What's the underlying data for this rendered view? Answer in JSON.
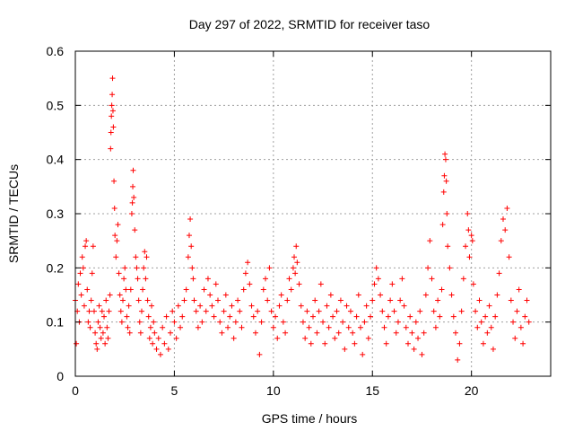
{
  "chart_data": {
    "type": "scatter",
    "title": "Day 297 of 2022, SRMTID for receiver taso",
    "xlabel": "GPS time / hours",
    "ylabel": "SRMTID / TECUs",
    "xlim": [
      0,
      24
    ],
    "ylim": [
      0,
      0.6
    ],
    "x_ticks": [
      0,
      5,
      10,
      15,
      20
    ],
    "x_tick_labels": [
      "0",
      "5",
      "10",
      "15",
      "20"
    ],
    "y_ticks": [
      0,
      0.1,
      0.2,
      0.3,
      0.4,
      0.5,
      0.6
    ],
    "y_tick_labels": [
      "0",
      "0.1",
      "0.2",
      "0.3",
      "0.4",
      "0.5",
      "0.6"
    ],
    "grid": true,
    "marker": "+",
    "color": "#ff0000",
    "series": [
      {
        "name": "SRMTID",
        "points": [
          [
            0.0,
            0.14
          ],
          [
            0.05,
            0.06
          ],
          [
            0.1,
            0.12
          ],
          [
            0.15,
            0.17
          ],
          [
            0.2,
            0.1
          ],
          [
            0.25,
            0.19
          ],
          [
            0.3,
            0.15
          ],
          [
            0.35,
            0.22
          ],
          [
            0.4,
            0.2
          ],
          [
            0.45,
            0.13
          ],
          [
            0.5,
            0.24
          ],
          [
            0.55,
            0.25
          ],
          [
            0.6,
            0.16
          ],
          [
            0.65,
            0.1
          ],
          [
            0.7,
            0.12
          ],
          [
            0.75,
            0.09
          ],
          [
            0.8,
            0.14
          ],
          [
            0.85,
            0.19
          ],
          [
            0.9,
            0.24
          ],
          [
            0.95,
            0.12
          ],
          [
            1.0,
            0.08
          ],
          [
            1.05,
            0.06
          ],
          [
            1.1,
            0.05
          ],
          [
            1.15,
            0.1
          ],
          [
            1.2,
            0.13
          ],
          [
            1.25,
            0.09
          ],
          [
            1.3,
            0.07
          ],
          [
            1.35,
            0.12
          ],
          [
            1.4,
            0.08
          ],
          [
            1.45,
            0.11
          ],
          [
            1.5,
            0.06
          ],
          [
            1.55,
            0.14
          ],
          [
            1.6,
            0.09
          ],
          [
            1.65,
            0.07
          ],
          [
            1.7,
            0.12
          ],
          [
            1.75,
            0.15
          ],
          [
            1.78,
            0.42
          ],
          [
            1.8,
            0.45
          ],
          [
            1.82,
            0.48
          ],
          [
            1.84,
            0.5
          ],
          [
            1.86,
            0.52
          ],
          [
            1.88,
            0.55
          ],
          [
            1.9,
            0.49
          ],
          [
            1.92,
            0.46
          ],
          [
            1.95,
            0.36
          ],
          [
            1.98,
            0.31
          ],
          [
            2.0,
            0.26
          ],
          [
            2.05,
            0.22
          ],
          [
            2.1,
            0.25
          ],
          [
            2.15,
            0.28
          ],
          [
            2.2,
            0.19
          ],
          [
            2.25,
            0.15
          ],
          [
            2.3,
            0.12
          ],
          [
            2.35,
            0.1
          ],
          [
            2.4,
            0.14
          ],
          [
            2.45,
            0.18
          ],
          [
            2.5,
            0.2
          ],
          [
            2.55,
            0.16
          ],
          [
            2.6,
            0.11
          ],
          [
            2.65,
            0.09
          ],
          [
            2.7,
            0.13
          ],
          [
            2.75,
            0.08
          ],
          [
            2.8,
            0.16
          ],
          [
            2.85,
            0.3
          ],
          [
            2.88,
            0.32
          ],
          [
            2.9,
            0.35
          ],
          [
            2.92,
            0.38
          ],
          [
            2.95,
            0.33
          ],
          [
            3.0,
            0.27
          ],
          [
            3.05,
            0.22
          ],
          [
            3.1,
            0.2
          ],
          [
            3.15,
            0.18
          ],
          [
            3.2,
            0.14
          ],
          [
            3.25,
            0.1
          ],
          [
            3.3,
            0.08
          ],
          [
            3.35,
            0.12
          ],
          [
            3.4,
            0.16
          ],
          [
            3.45,
            0.2
          ],
          [
            3.5,
            0.23
          ],
          [
            3.55,
            0.18
          ],
          [
            3.6,
            0.22
          ],
          [
            3.65,
            0.14
          ],
          [
            3.7,
            0.11
          ],
          [
            3.75,
            0.07
          ],
          [
            3.8,
            0.09
          ],
          [
            3.85,
            0.13
          ],
          [
            3.9,
            0.06
          ],
          [
            3.95,
            0.1
          ],
          [
            4.0,
            0.08
          ],
          [
            4.1,
            0.05
          ],
          [
            4.2,
            0.07
          ],
          [
            4.3,
            0.04
          ],
          [
            4.4,
            0.09
          ],
          [
            4.5,
            0.06
          ],
          [
            4.6,
            0.11
          ],
          [
            4.7,
            0.05
          ],
          [
            4.8,
            0.08
          ],
          [
            4.9,
            0.12
          ],
          [
            5.0,
            0.1
          ],
          [
            5.1,
            0.07
          ],
          [
            5.2,
            0.13
          ],
          [
            5.3,
            0.09
          ],
          [
            5.4,
            0.11
          ],
          [
            5.5,
            0.14
          ],
          [
            5.6,
            0.16
          ],
          [
            5.7,
            0.22
          ],
          [
            5.75,
            0.26
          ],
          [
            5.8,
            0.29
          ],
          [
            5.85,
            0.24
          ],
          [
            5.9,
            0.2
          ],
          [
            5.95,
            0.18
          ],
          [
            6.0,
            0.14
          ],
          [
            6.1,
            0.12
          ],
          [
            6.2,
            0.09
          ],
          [
            6.3,
            0.13
          ],
          [
            6.4,
            0.1
          ],
          [
            6.5,
            0.16
          ],
          [
            6.6,
            0.12
          ],
          [
            6.7,
            0.18
          ],
          [
            6.8,
            0.15
          ],
          [
            6.9,
            0.13
          ],
          [
            7.0,
            0.11
          ],
          [
            7.1,
            0.17
          ],
          [
            7.2,
            0.14
          ],
          [
            7.3,
            0.1
          ],
          [
            7.4,
            0.08
          ],
          [
            7.5,
            0.12
          ],
          [
            7.6,
            0.15
          ],
          [
            7.7,
            0.09
          ],
          [
            7.8,
            0.11
          ],
          [
            7.9,
            0.13
          ],
          [
            8.0,
            0.07
          ],
          [
            8.1,
            0.1
          ],
          [
            8.2,
            0.14
          ],
          [
            8.3,
            0.12
          ],
          [
            8.4,
            0.09
          ],
          [
            8.5,
            0.16
          ],
          [
            8.6,
            0.19
          ],
          [
            8.7,
            0.21
          ],
          [
            8.8,
            0.17
          ],
          [
            8.9,
            0.13
          ],
          [
            9.0,
            0.11
          ],
          [
            9.1,
            0.08
          ],
          [
            9.2,
            0.12
          ],
          [
            9.3,
            0.04
          ],
          [
            9.4,
            0.1
          ],
          [
            9.5,
            0.16
          ],
          [
            9.6,
            0.18
          ],
          [
            9.7,
            0.14
          ],
          [
            9.8,
            0.2
          ],
          [
            9.9,
            0.12
          ],
          [
            10.0,
            0.09
          ],
          [
            10.1,
            0.11
          ],
          [
            10.2,
            0.07
          ],
          [
            10.3,
            0.13
          ],
          [
            10.4,
            0.15
          ],
          [
            10.5,
            0.1
          ],
          [
            10.6,
            0.08
          ],
          [
            10.7,
            0.14
          ],
          [
            10.8,
            0.18
          ],
          [
            10.9,
            0.16
          ],
          [
            11.0,
            0.2
          ],
          [
            11.05,
            0.22
          ],
          [
            11.1,
            0.19
          ],
          [
            11.15,
            0.24
          ],
          [
            11.2,
            0.21
          ],
          [
            11.3,
            0.17
          ],
          [
            11.4,
            0.13
          ],
          [
            11.5,
            0.1
          ],
          [
            11.6,
            0.07
          ],
          [
            11.7,
            0.12
          ],
          [
            11.8,
            0.09
          ],
          [
            11.9,
            0.06
          ],
          [
            12.0,
            0.11
          ],
          [
            12.1,
            0.14
          ],
          [
            12.2,
            0.08
          ],
          [
            12.3,
            0.12
          ],
          [
            12.4,
            0.17
          ],
          [
            12.5,
            0.1
          ],
          [
            12.6,
            0.06
          ],
          [
            12.7,
            0.13
          ],
          [
            12.8,
            0.09
          ],
          [
            12.9,
            0.15
          ],
          [
            13.0,
            0.11
          ],
          [
            13.1,
            0.07
          ],
          [
            13.2,
            0.12
          ],
          [
            13.3,
            0.08
          ],
          [
            13.4,
            0.14
          ],
          [
            13.5,
            0.1
          ],
          [
            13.6,
            0.05
          ],
          [
            13.7,
            0.13
          ],
          [
            13.8,
            0.09
          ],
          [
            13.9,
            0.12
          ],
          [
            14.0,
            0.08
          ],
          [
            14.1,
            0.06
          ],
          [
            14.2,
            0.11
          ],
          [
            14.3,
            0.15
          ],
          [
            14.4,
            0.09
          ],
          [
            14.5,
            0.04
          ],
          [
            14.6,
            0.1
          ],
          [
            14.7,
            0.13
          ],
          [
            14.8,
            0.07
          ],
          [
            14.9,
            0.11
          ],
          [
            15.0,
            0.14
          ],
          [
            15.1,
            0.17
          ],
          [
            15.2,
            0.2
          ],
          [
            15.3,
            0.18
          ],
          [
            15.4,
            0.15
          ],
          [
            15.5,
            0.12
          ],
          [
            15.6,
            0.09
          ],
          [
            15.7,
            0.06
          ],
          [
            15.8,
            0.11
          ],
          [
            15.9,
            0.14
          ],
          [
            16.0,
            0.17
          ],
          [
            16.1,
            0.12
          ],
          [
            16.2,
            0.08
          ],
          [
            16.3,
            0.1
          ],
          [
            16.4,
            0.14
          ],
          [
            16.5,
            0.18
          ],
          [
            16.6,
            0.13
          ],
          [
            16.7,
            0.09
          ],
          [
            16.8,
            0.06
          ],
          [
            16.9,
            0.11
          ],
          [
            17.0,
            0.08
          ],
          [
            17.1,
            0.05
          ],
          [
            17.2,
            0.1
          ],
          [
            17.3,
            0.07
          ],
          [
            17.4,
            0.12
          ],
          [
            17.5,
            0.04
          ],
          [
            17.6,
            0.08
          ],
          [
            17.7,
            0.15
          ],
          [
            17.8,
            0.2
          ],
          [
            17.9,
            0.25
          ],
          [
            18.0,
            0.18
          ],
          [
            18.1,
            0.12
          ],
          [
            18.2,
            0.09
          ],
          [
            18.3,
            0.14
          ],
          [
            18.4,
            0.11
          ],
          [
            18.5,
            0.16
          ],
          [
            18.55,
            0.28
          ],
          [
            18.6,
            0.34
          ],
          [
            18.63,
            0.37
          ],
          [
            18.66,
            0.41
          ],
          [
            18.7,
            0.4
          ],
          [
            18.73,
            0.36
          ],
          [
            18.76,
            0.3
          ],
          [
            18.8,
            0.24
          ],
          [
            18.9,
            0.2
          ],
          [
            19.0,
            0.15
          ],
          [
            19.1,
            0.11
          ],
          [
            19.2,
            0.08
          ],
          [
            19.3,
            0.03
          ],
          [
            19.4,
            0.06
          ],
          [
            19.5,
            0.12
          ],
          [
            19.6,
            0.18
          ],
          [
            19.7,
            0.24
          ],
          [
            19.8,
            0.3
          ],
          [
            19.85,
            0.27
          ],
          [
            19.9,
            0.22
          ],
          [
            20.0,
            0.26
          ],
          [
            20.05,
            0.25
          ],
          [
            20.1,
            0.17
          ],
          [
            20.2,
            0.12
          ],
          [
            20.3,
            0.09
          ],
          [
            20.4,
            0.14
          ],
          [
            20.5,
            0.1
          ],
          [
            20.6,
            0.06
          ],
          [
            20.7,
            0.11
          ],
          [
            20.8,
            0.08
          ],
          [
            20.9,
            0.13
          ],
          [
            21.0,
            0.09
          ],
          [
            21.1,
            0.05
          ],
          [
            21.2,
            0.11
          ],
          [
            21.3,
            0.15
          ],
          [
            21.4,
            0.19
          ],
          [
            21.5,
            0.25
          ],
          [
            21.6,
            0.29
          ],
          [
            21.7,
            0.27
          ],
          [
            21.8,
            0.31
          ],
          [
            21.9,
            0.22
          ],
          [
            22.0,
            0.14
          ],
          [
            22.1,
            0.1
          ],
          [
            22.2,
            0.07
          ],
          [
            22.3,
            0.12
          ],
          [
            22.4,
            0.16
          ],
          [
            22.5,
            0.09
          ],
          [
            22.6,
            0.06
          ],
          [
            22.7,
            0.11
          ],
          [
            22.8,
            0.14
          ],
          [
            22.9,
            0.1
          ]
        ]
      }
    ]
  }
}
